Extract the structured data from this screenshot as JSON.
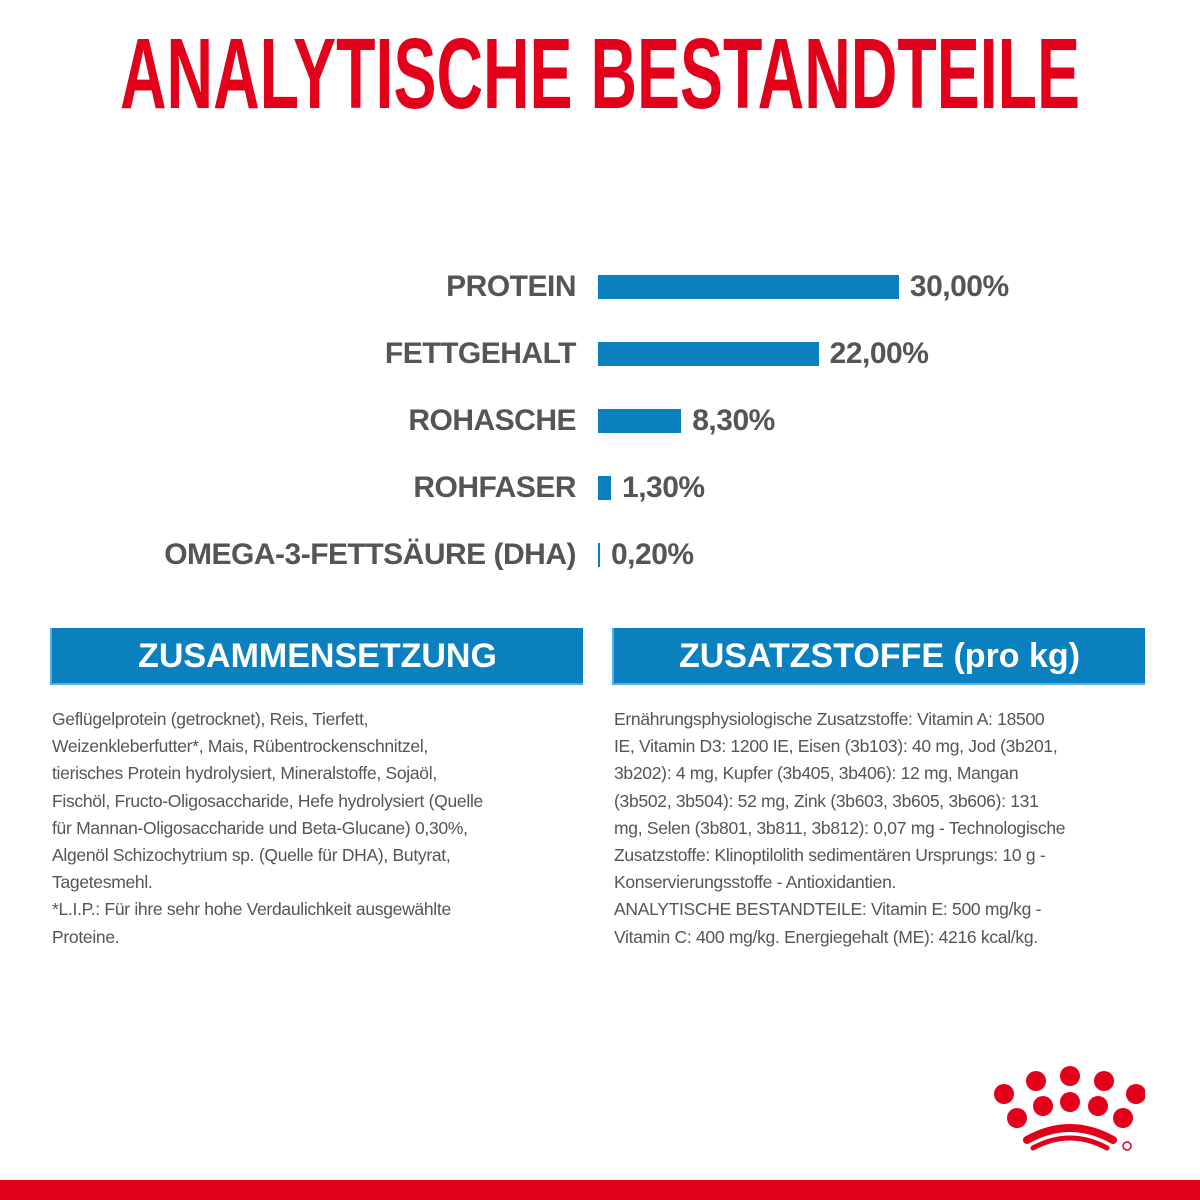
{
  "title": "ANALYTISCHE BESTANDTEILE",
  "colors": {
    "brand_red": "#e2001a",
    "bar_blue": "#0a80bf",
    "text_gray": "#555555"
  },
  "chart_data": {
    "type": "bar",
    "orientation": "horizontal",
    "categories": [
      "PROTEIN",
      "FETTGEHALT",
      "ROHASCHE",
      "ROHFASER",
      "OMEGA-3-FETTSÄURE (DHA)"
    ],
    "values": [
      30.0,
      22.0,
      8.3,
      1.3,
      0.2
    ],
    "value_labels": [
      "30,00%",
      "22,00%",
      "8,30%",
      "1,30%",
      "0,20%"
    ],
    "unit": "%"
  },
  "sections": {
    "composition": {
      "heading": "ZUSAMMENSETZUNG",
      "lines": [
        "Geflügelprotein (getrocknet), Reis, Tierfett,",
        "Weizenkleberfutter*, Mais, Rübentrockenschnitzel,",
        "tierisches Protein hydrolysiert, Mineralstoffe, Sojaöl,",
        "Fischöl, Fructo-Oligosaccharide, Hefe hydrolysiert (Quelle",
        "für Mannan-Oligosaccharide und Beta-Glucane) 0,30%,",
        "Algenöl Schizochytrium sp. (Quelle für DHA), Butyrat,",
        "Tagetesmehl.",
        "*L.I.P.: Für ihre sehr hohe Verdaulichkeit ausgewählte",
        "Proteine."
      ]
    },
    "additives": {
      "heading": "ZUSATZSTOFFE (pro kg)",
      "lines": [
        "Ernährungsphysiologische Zusatzstoffe: Vitamin A: 18500",
        "IE, Vitamin D3: 1200 IE, Eisen (3b103): 40 mg, Jod (3b201,",
        "3b202): 4 mg, Kupfer (3b405, 3b406): 12 mg, Mangan",
        "(3b502, 3b504): 52 mg, Zink (3b603, 3b605, 3b606): 131",
        "mg, Selen (3b801, 3b811, 3b812): 0,07 mg - Technologische",
        "Zusatzstoffe: Klinoptilolith sedimentären Ursprungs: 10 g -",
        "Konservierungsstoffe - Antioxidantien.",
        "ANALYTISCHE BESTANDTEILE: Vitamin E: 500 mg/kg -",
        "Vitamin C: 400 mg/kg. Energiegehalt (ME): 4216 kcal/kg."
      ]
    }
  },
  "logo": {
    "icon": "royal-canin-crown-logo"
  }
}
